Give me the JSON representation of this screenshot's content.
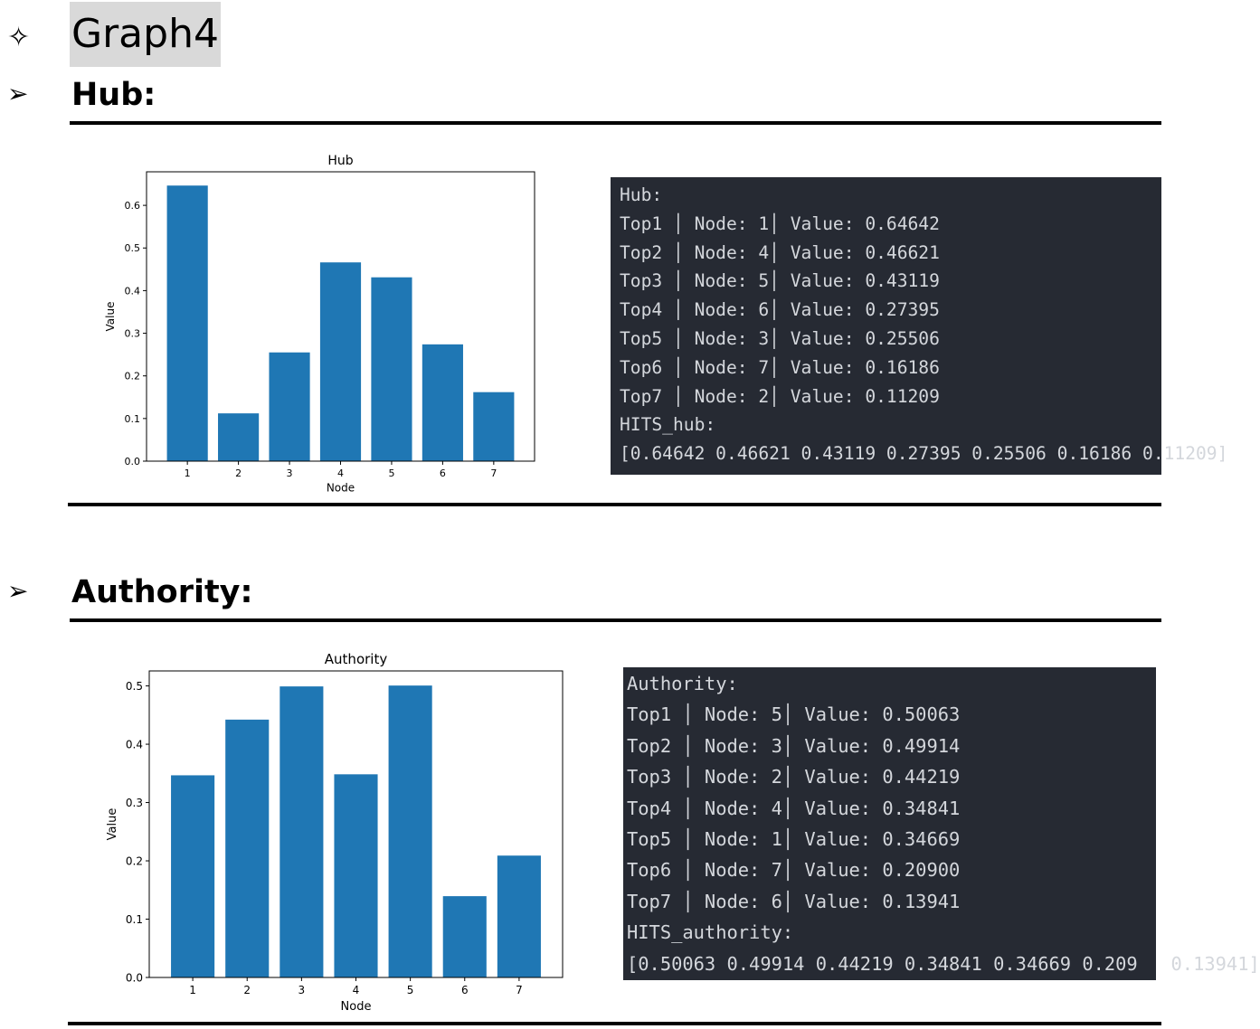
{
  "header": {
    "title_bullet": "✧",
    "title": "Graph4",
    "section_bullet": "➢"
  },
  "hub": {
    "heading": "Hub:",
    "terminal": {
      "lines": [
        "Hub:",
        "Top1 │ Node: 1│ Value: 0.64642",
        "Top2 │ Node: 4│ Value: 0.46621",
        "Top3 │ Node: 5│ Value: 0.43119",
        "Top4 │ Node: 6│ Value: 0.27395",
        "Top5 │ Node: 3│ Value: 0.25506",
        "Top6 │ Node: 7│ Value: 0.16186",
        "Top7 │ Node: 2│ Value: 0.11209",
        "HITS_hub:",
        "[0.64642 0.46621 0.43119 0.27395 0.25506 0.16186 0.11209]"
      ]
    }
  },
  "authority": {
    "heading": "Authority:",
    "terminal": {
      "lines": [
        "Authority:",
        "Top1 │ Node: 5│ Value: 0.50063",
        "Top2 │ Node: 3│ Value: 0.49914",
        "Top3 │ Node: 2│ Value: 0.44219",
        "Top4 │ Node: 4│ Value: 0.34841",
        "Top5 │ Node: 1│ Value: 0.34669",
        "Top6 │ Node: 7│ Value: 0.20900",
        "Top7 │ Node: 6│ Value: 0.13941",
        "HITS_authority:",
        "[0.50063 0.49914 0.44219 0.34841 0.34669 0.209   0.13941]"
      ]
    }
  },
  "chart_data": [
    {
      "type": "bar",
      "title": "Hub",
      "xlabel": "Node",
      "ylabel": "Value",
      "categories": [
        "1",
        "2",
        "3",
        "4",
        "5",
        "6",
        "7"
      ],
      "values": [
        0.64642,
        0.11209,
        0.25506,
        0.46621,
        0.43119,
        0.27395,
        0.16186
      ],
      "yticks": [
        "0.0",
        "0.1",
        "0.2",
        "0.3",
        "0.4",
        "0.5",
        "0.6"
      ],
      "ylim": [
        0,
        0.6787
      ],
      "color": "#1f77b4",
      "grid": false
    },
    {
      "type": "bar",
      "title": "Authority",
      "xlabel": "Node",
      "ylabel": "Value",
      "categories": [
        "1",
        "2",
        "3",
        "4",
        "5",
        "6",
        "7"
      ],
      "values": [
        0.34669,
        0.44219,
        0.49914,
        0.34841,
        0.50063,
        0.13941,
        0.209
      ],
      "yticks": [
        "0.0",
        "0.1",
        "0.2",
        "0.3",
        "0.4",
        "0.5"
      ],
      "ylim": [
        0,
        0.5257
      ],
      "color": "#1f77b4",
      "grid": false
    }
  ]
}
